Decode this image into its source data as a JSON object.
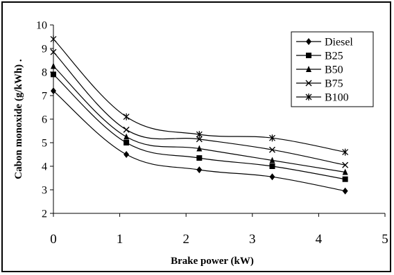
{
  "chart_data": {
    "type": "line",
    "x": [
      0,
      1.1,
      2.2,
      3.3,
      4.4
    ],
    "series": [
      {
        "name": "Diesel",
        "marker": "diamond",
        "values": [
          7.2,
          4.5,
          3.85,
          3.55,
          2.95
        ]
      },
      {
        "name": "B25",
        "marker": "square",
        "values": [
          7.9,
          5.0,
          4.35,
          4.0,
          3.45
        ]
      },
      {
        "name": "B50",
        "marker": "triangle",
        "values": [
          8.25,
          5.25,
          4.75,
          4.25,
          3.75
        ]
      },
      {
        "name": "B75",
        "marker": "x",
        "values": [
          8.85,
          5.55,
          5.15,
          4.7,
          4.05
        ]
      },
      {
        "name": "B100",
        "marker": "star",
        "values": [
          9.4,
          6.1,
          5.35,
          5.2,
          4.6
        ]
      }
    ],
    "xlabel": "Brake power (kW)",
    "ylabel": "Cabon monoxide (g/kWh) .",
    "xlim": [
      0,
      5
    ],
    "ylim": [
      2,
      10
    ],
    "xticks": [
      "0",
      "1",
      "2",
      "3",
      "4",
      "5"
    ],
    "yticks": [
      "2",
      "3",
      "4",
      "5",
      "6",
      "7",
      "8",
      "9",
      "10"
    ],
    "legend_position": "top-right",
    "line_color": "#000000",
    "grid": false
  }
}
